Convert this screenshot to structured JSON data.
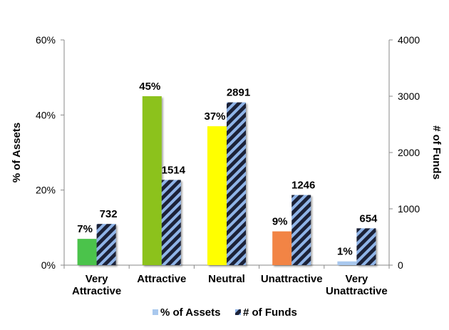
{
  "chart_data": {
    "type": "bar",
    "categories": [
      [
        "Very",
        "Attractive"
      ],
      [
        "Attractive"
      ],
      [
        "Neutral"
      ],
      [
        "Unattractive"
      ],
      [
        "Very",
        "Unattractive"
      ]
    ],
    "series": [
      {
        "name": "% of Assets",
        "axis": "left",
        "values": [
          7,
          45,
          37,
          9,
          1
        ],
        "labels": [
          "7%",
          "45%",
          "37%",
          "9%",
          "1%"
        ],
        "colors": [
          "#4cc34c",
          "#8cc21a",
          "#ffff00",
          "#f28444",
          "#a9c8ee"
        ]
      },
      {
        "name": "# of Funds",
        "axis": "right",
        "values": [
          732,
          1514,
          2891,
          1246,
          654
        ],
        "labels": [
          "732",
          "1514",
          "2891",
          "1246",
          "654"
        ],
        "pattern_colors": [
          "#1c2238",
          "#8fb4e8"
        ]
      }
    ],
    "y_left": {
      "label": "% of Assets",
      "range": [
        0,
        60
      ],
      "ticks": [
        0,
        20,
        40,
        60
      ],
      "tick_labels": [
        "0%",
        "20%",
        "40%",
        "60%"
      ]
    },
    "y_right": {
      "label": "# of Funds",
      "range": [
        0,
        4000
      ],
      "ticks": [
        0,
        1000,
        2000,
        3000,
        4000
      ],
      "tick_labels": [
        "0",
        "1000",
        "2000",
        "3000",
        "4000"
      ]
    },
    "grid": false,
    "legend_position": "bottom"
  }
}
